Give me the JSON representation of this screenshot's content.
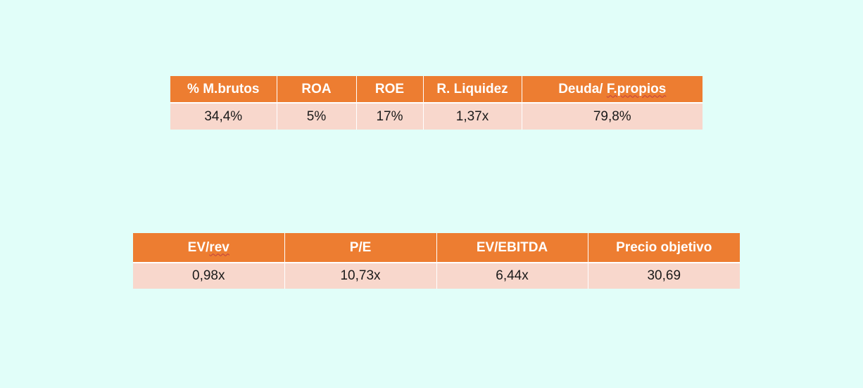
{
  "table_profitability": {
    "headers": [
      "% M.brutos",
      "ROA",
      "ROE",
      "R. Liquidez",
      "Deuda/ F.propios"
    ],
    "values": [
      "34,4%",
      "5%",
      "17%",
      "1,37x",
      "79,8%"
    ]
  },
  "table_valuation": {
    "headers": [
      "EV/rev",
      "P/E",
      "EV/EBITDA",
      "Precio objetivo"
    ],
    "values": [
      "0,98x",
      "10,73x",
      "6,44x",
      "30,69"
    ]
  },
  "colors": {
    "background": "#e1fef9",
    "header_fill": "#ed7d31",
    "header_text": "#ffffff",
    "cell_fill": "#f8d7cc",
    "cell_text": "#1a1a1a",
    "spellcheck_underline": "#c04040"
  }
}
